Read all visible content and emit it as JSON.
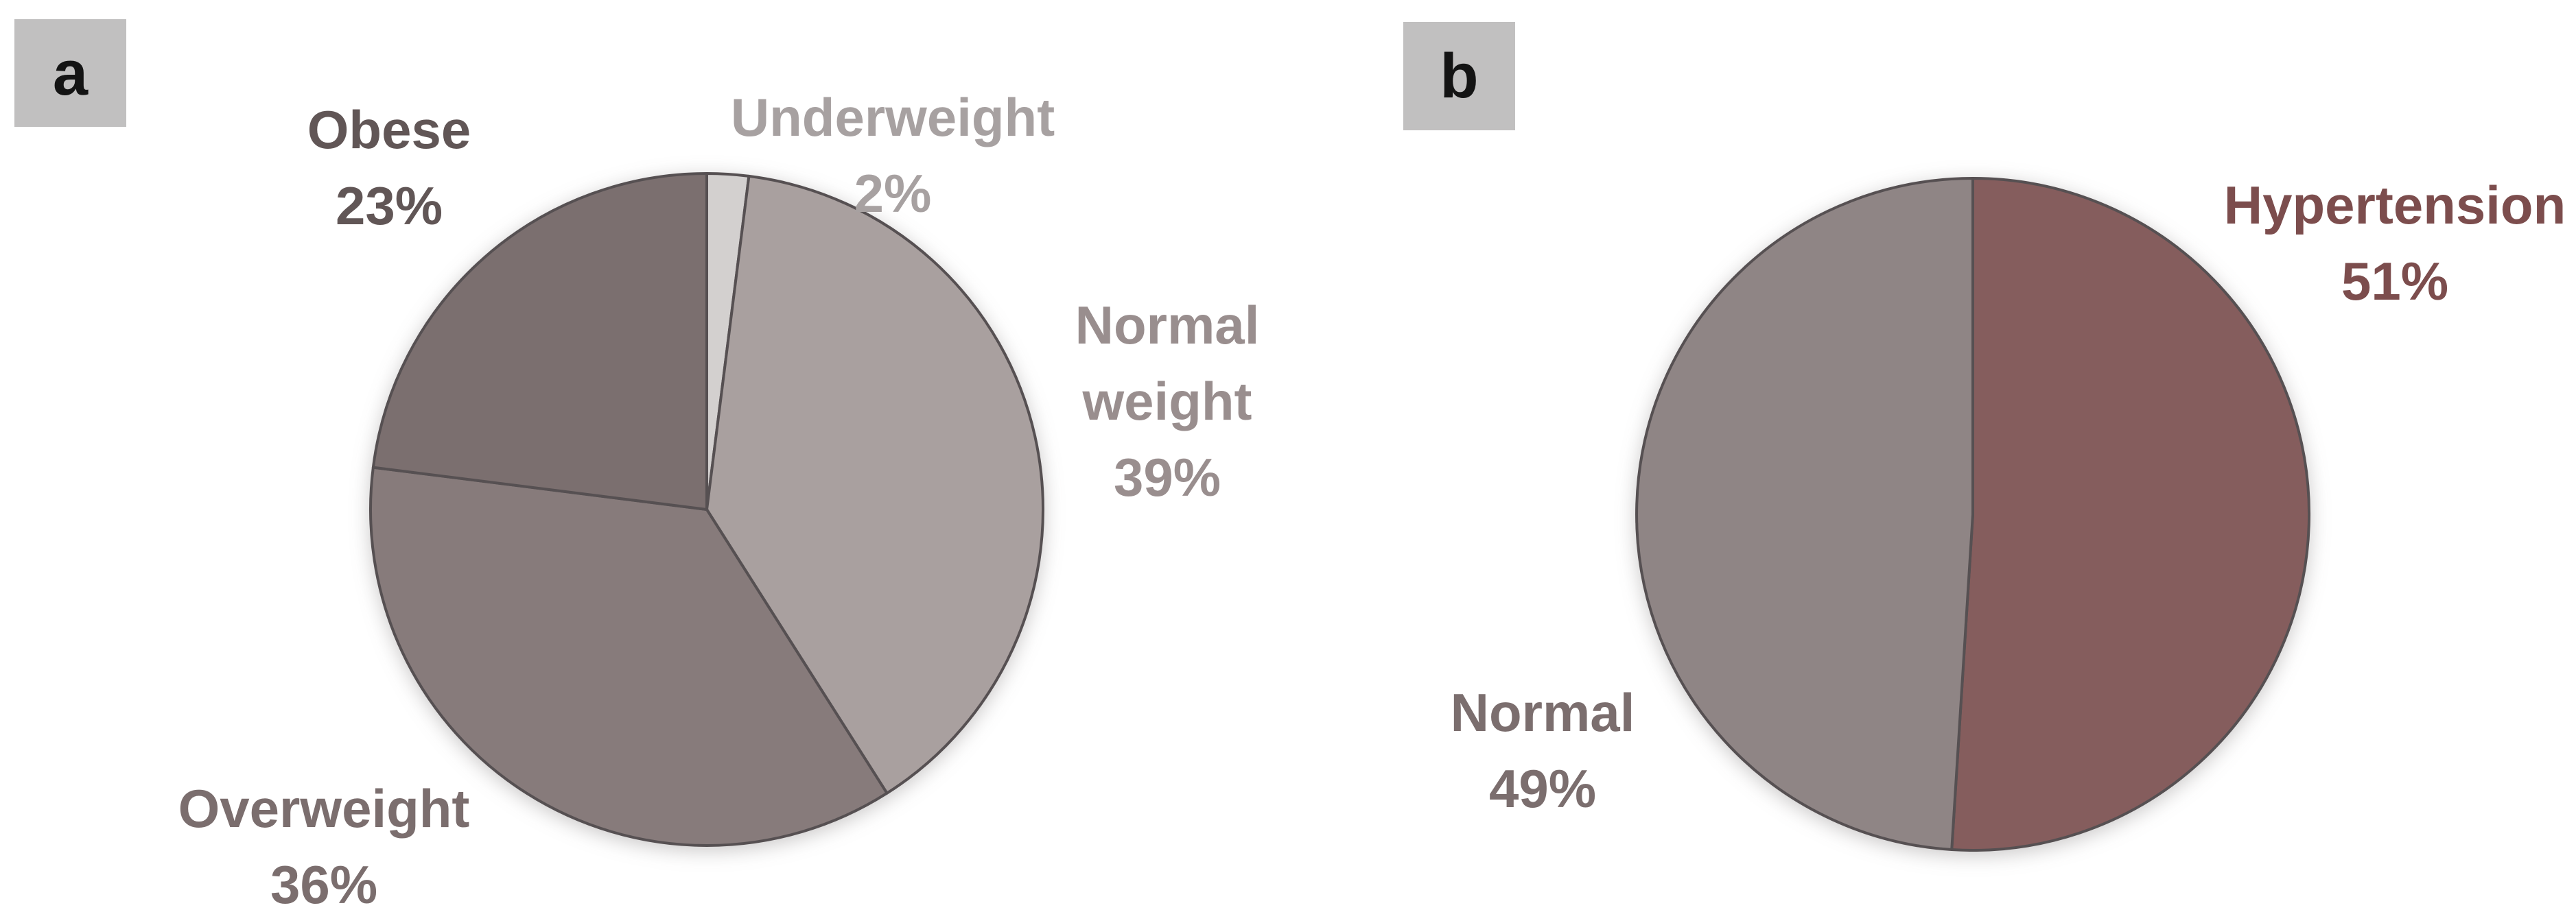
{
  "figure": {
    "background": "#ffffff",
    "panel_tag_background": "#c1c0c0",
    "panel_tag_text_color": "#141414"
  },
  "chart_data": [
    {
      "type": "pie",
      "panel": "a",
      "title": "",
      "categories": [
        "Underweight",
        "Normal weight",
        "Overweight",
        "Obese"
      ],
      "values": [
        2,
        39,
        36,
        23
      ],
      "start_angle_deg": 0,
      "direction": "clockwise",
      "outline_color": "#565052",
      "legend_position": "none",
      "slices": [
        {
          "label": "Underweight",
          "pct": 2,
          "pct_label": "2%",
          "color": "#d3d0cf",
          "label_color": "#a7a1a1"
        },
        {
          "label": "Normal weight",
          "pct": 39,
          "pct_label": "39%",
          "color": "#a9a09f",
          "label_color": "#998e8e"
        },
        {
          "label": "Overweight",
          "pct": 36,
          "pct_label": "36%",
          "color": "#877b7b",
          "label_color": "#7b6e6e"
        },
        {
          "label": "Obese",
          "pct": 23,
          "pct_label": "23%",
          "color": "#7b6f6f",
          "label_color": "#615656"
        }
      ]
    },
    {
      "type": "pie",
      "panel": "b",
      "title": "",
      "categories": [
        "Hypertension",
        "Normal"
      ],
      "values": [
        51,
        49
      ],
      "start_angle_deg": 0,
      "direction": "clockwise",
      "outline_color": "#565052",
      "legend_position": "none",
      "slices": [
        {
          "label": "Hypertension",
          "pct": 51,
          "pct_label": "51%",
          "color": "#855d5d",
          "label_color": "#7c4d4d"
        },
        {
          "label": "Normal",
          "pct": 49,
          "pct_label": "49%",
          "color": "#8f8585",
          "label_color": "#7b6e6e"
        }
      ]
    }
  ]
}
